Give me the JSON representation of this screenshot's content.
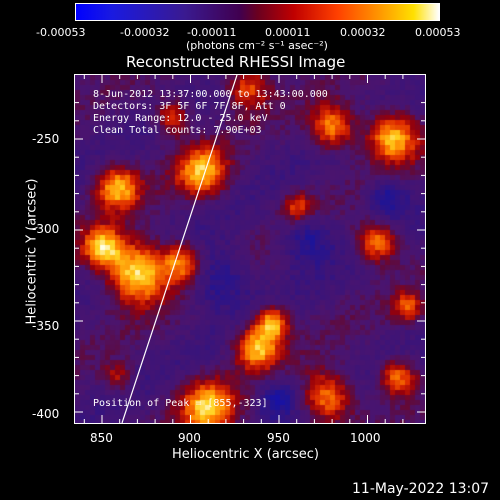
{
  "colorbar": {
    "tick_labels": [
      "-0.00053",
      "-0.00032",
      "-0.00011",
      "0.00011",
      "0.00032",
      "0.00053"
    ],
    "units_label": "(photons cm⁻² s⁻¹ asec⁻²)"
  },
  "plot": {
    "title": "Reconstructed RHESSI Image",
    "x_axis_label": "Heliocentric X (arcsec)",
    "y_axis_label": "Heliocentric Y (arcsec)",
    "x_ticks": [
      "850",
      "900",
      "950",
      "1000"
    ],
    "y_ticks": [
      "-250",
      "-300",
      "-350",
      "-400"
    ],
    "annotations": {
      "time_range": "8-Jun-2012 13:37:00.000 to 13:43:00.000",
      "detectors": "Detectors: 3F 5F 6F 7F 8F, Att 0",
      "energy_range": "Energy Range: 12.0 - 25.0 keV",
      "clean_counts": "Clean    Total counts: 7.90E+03",
      "peak_position": "Position of Peak = [855,-323]"
    }
  },
  "footer": {
    "timestamp": "11-May-2022 13:07"
  },
  "colors": {
    "background": "#000000",
    "axes": "#ffffff",
    "colormap_low": "#0000ff",
    "colormap_mid": "#330055",
    "colormap_high": "#ffffff"
  }
}
